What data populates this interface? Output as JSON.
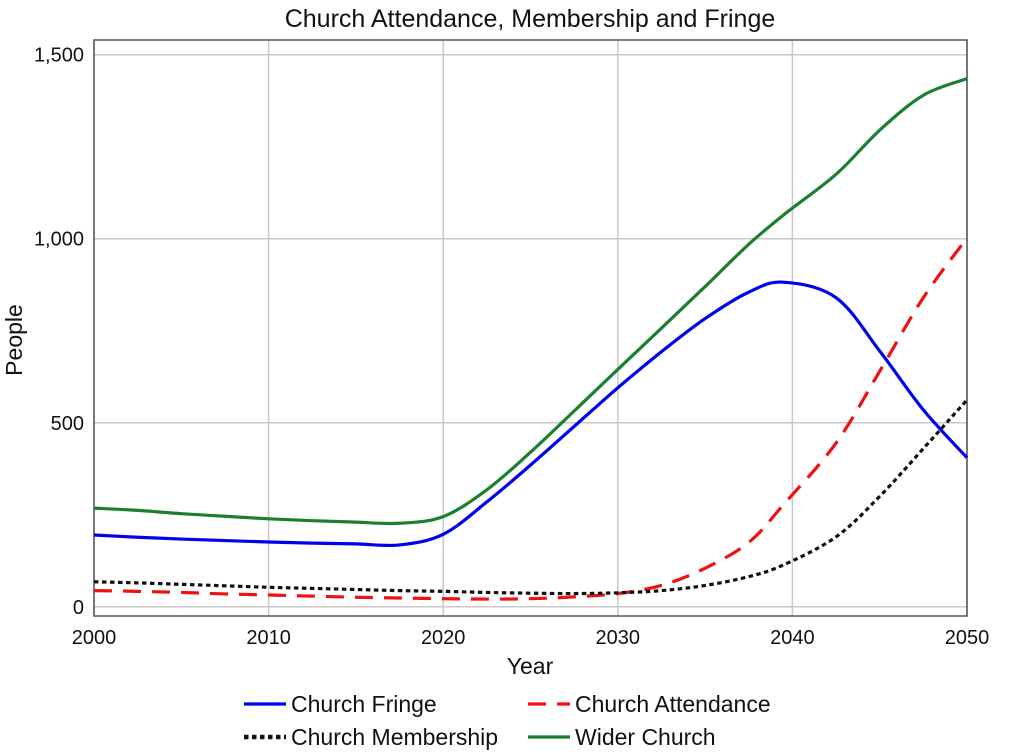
{
  "chart_data": {
    "type": "line",
    "title": "Church Attendance, Membership and Fringe",
    "xlabel": "Year",
    "ylabel": "People",
    "xlim": [
      2000,
      2050
    ],
    "ylim": [
      -25,
      1540
    ],
    "x_ticks": [
      2000,
      2010,
      2020,
      2030,
      2040,
      2050
    ],
    "x_tick_labels": [
      "2000",
      "2010",
      "2020",
      "2030",
      "2040",
      "2050"
    ],
    "y_ticks": [
      0,
      500,
      1000,
      1500
    ],
    "y_tick_labels": [
      "0",
      "500",
      "1,000",
      "1,500"
    ],
    "grid": true,
    "legend_position": "bottom",
    "x": [
      2000,
      2002.5,
      2005,
      2007.5,
      2010,
      2012.5,
      2015,
      2017.5,
      2020,
      2022.5,
      2025,
      2027.5,
      2030,
      2032.5,
      2035,
      2037.5,
      2039.5,
      2042.5,
      2045,
      2047.5,
      2050
    ],
    "series": [
      {
        "name": "Church Fringe",
        "color": "#0000ee",
        "dash": "solid",
        "values": [
          195,
          189,
          184,
          180,
          176,
          173,
          171,
          168,
          197,
          285,
          385,
          490,
          595,
          693,
          783,
          855,
          882,
          840,
          695,
          535,
          405
        ]
      },
      {
        "name": "Church Attendance",
        "color": "#ee1111",
        "dash": "dashed",
        "values": [
          44,
          42,
          39,
          35,
          32,
          29,
          26,
          24,
          22,
          21,
          22,
          27,
          36,
          58,
          105,
          175,
          278,
          445,
          640,
          840,
          1002
        ]
      },
      {
        "name": "Church Membership",
        "color": "#111111",
        "dash": "dotted",
        "values": [
          68,
          65,
          61,
          57,
          53,
          50,
          47,
          44,
          42,
          39,
          37,
          36,
          38,
          44,
          58,
          82,
          114,
          190,
          300,
          430,
          562
        ]
      },
      {
        "name": "Wider Church",
        "color": "#1a7f2f",
        "dash": "solid",
        "values": [
          268,
          262,
          253,
          246,
          239,
          234,
          230,
          227,
          245,
          318,
          420,
          532,
          645,
          757,
          870,
          985,
          1065,
          1175,
          1295,
          1390,
          1435
        ]
      }
    ]
  }
}
